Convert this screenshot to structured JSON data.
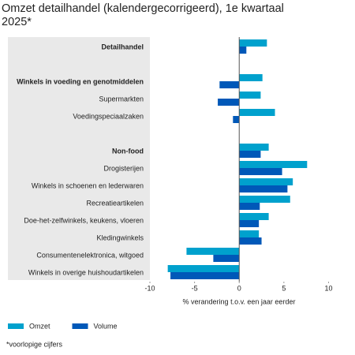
{
  "chart_data": {
    "type": "hbar",
    "title": "Omzet detailhandel (kalendergecorrigeerd), 1e kwartaal 2025*",
    "categories": [
      "Detailhandel",
      null,
      "Winkels in voeding en genotmiddelen",
      "Supermarkten",
      "Voedingspeciaalzaken",
      null,
      "Non-food",
      "Drogisterijen",
      "Winkels in schoenen en lederwaren",
      "Recreatieartikelen",
      "Doe-het-zelfwinkels, keukens, vloeren",
      "Kledingwinkels",
      "Consumentenelektronica, witgoed",
      "Winkels in overige huishoudartikelen"
    ],
    "bold_categories": [
      0,
      2,
      6
    ],
    "series": [
      {
        "name": "Omzet",
        "color": "#00a1cd",
        "values": [
          3.1,
          null,
          2.6,
          2.4,
          4.0,
          null,
          3.3,
          7.6,
          6.0,
          5.7,
          3.3,
          2.2,
          -5.9,
          -8.0
        ]
      },
      {
        "name": "Volume",
        "color": "#0058b8",
        "values": [
          0.8,
          null,
          -2.2,
          -2.4,
          -0.7,
          null,
          2.4,
          4.8,
          5.4,
          2.3,
          2.2,
          2.5,
          -2.9,
          -7.7
        ]
      }
    ],
    "xlim": [
      -10,
      10.4
    ],
    "xticks": [
      -10,
      -5,
      0,
      5,
      10
    ],
    "xlabel": "% verandering t.o.v. een jaar eerder",
    "footnote": "*voorlopige cijfers"
  }
}
